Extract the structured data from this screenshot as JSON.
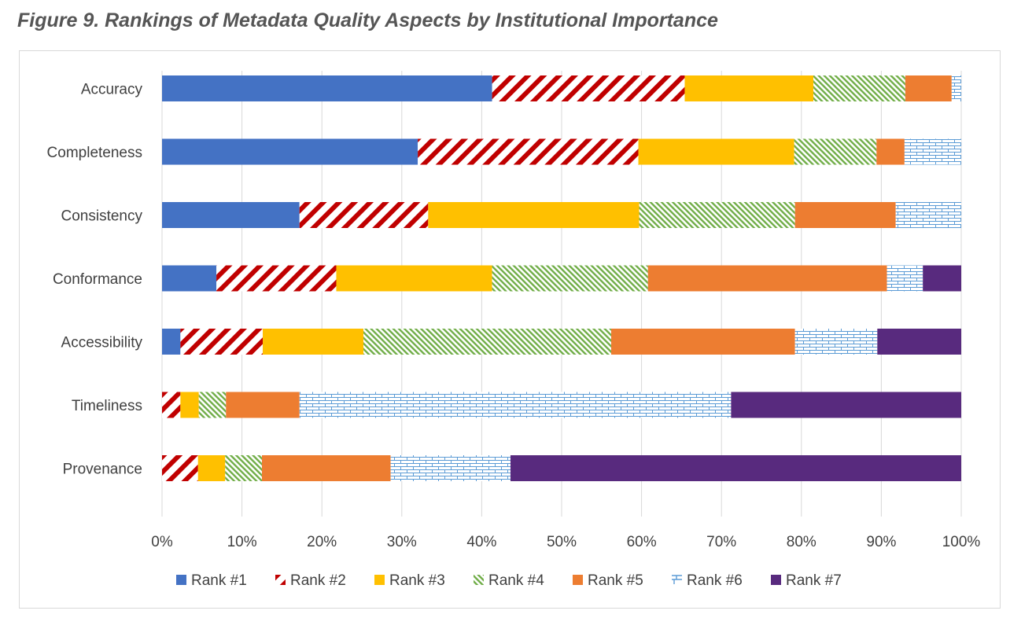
{
  "chart_data": {
    "type": "bar",
    "orientation": "horizontal",
    "stacked": "percent",
    "title": "Figure 9. Rankings of Metadata Quality Aspects by Institutional Importance",
    "xlabel": "",
    "ylabel": "",
    "xlim": [
      0,
      100
    ],
    "x_ticks": [
      "0%",
      "10%",
      "20%",
      "30%",
      "40%",
      "50%",
      "60%",
      "70%",
      "80%",
      "90%",
      "100%"
    ],
    "categories": [
      "Accuracy",
      "Completeness",
      "Consistency",
      "Conformance",
      "Accessibility",
      "Timeliness",
      "Provenance"
    ],
    "series": [
      {
        "name": "Rank #1",
        "color": "#4472C4",
        "pattern": "solid",
        "values": [
          41.3,
          32.0,
          17.2,
          6.8,
          2.3,
          0.0,
          0.0
        ]
      },
      {
        "name": "Rank #2",
        "color": "#C00000",
        "pattern": "wide-diagonal",
        "values": [
          24.1,
          27.6,
          16.1,
          15.0,
          10.3,
          2.3,
          4.5
        ]
      },
      {
        "name": "Rank #3",
        "color": "#FFC000",
        "pattern": "solid",
        "values": [
          16.1,
          19.5,
          26.4,
          19.5,
          12.6,
          2.3,
          3.4
        ]
      },
      {
        "name": "Rank #4",
        "color": "#70AD47",
        "pattern": "light-diagonal",
        "values": [
          11.5,
          10.3,
          19.5,
          19.5,
          31.0,
          3.4,
          4.6
        ]
      },
      {
        "name": "Rank #5",
        "color": "#ED7D31",
        "pattern": "solid",
        "values": [
          5.8,
          3.5,
          12.6,
          29.9,
          23.0,
          9.2,
          16.1
        ]
      },
      {
        "name": "Rank #6",
        "color": "#5B9BD5",
        "pattern": "brick",
        "values": [
          1.2,
          7.1,
          8.2,
          4.5,
          10.3,
          54.0,
          15.0
        ]
      },
      {
        "name": "Rank #7",
        "color": "#582A7E",
        "pattern": "solid",
        "values": [
          0.0,
          0.0,
          0.0,
          4.8,
          10.5,
          28.8,
          56.4
        ]
      }
    ],
    "grid": true,
    "legend_position": "bottom"
  }
}
